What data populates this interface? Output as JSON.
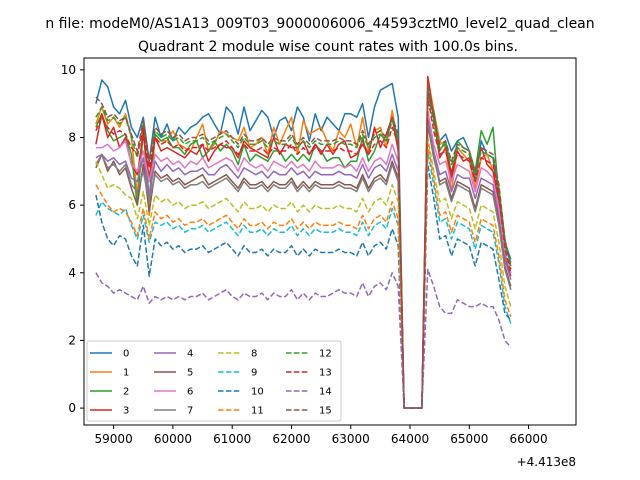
{
  "chart_data": {
    "type": "line",
    "suptitle": "n file: modeM0/AS1A13_009T03_9000006006_44593cztM0_level2_quad_clean",
    "title": "Quadrant 2 module wise count rates with 100.0s bins.",
    "xlabel": "",
    "ylabel": "",
    "x_offset_label": "+4.413e8",
    "xlim": [
      58500,
      66800
    ],
    "ylim": [
      -0.5,
      10.35
    ],
    "x_ticks": [
      59000,
      60000,
      61000,
      62000,
      63000,
      64000,
      65000,
      66000
    ],
    "x_tick_labels": [
      "59000",
      "60000",
      "61000",
      "62000",
      "63000",
      "64000",
      "65000",
      "66000"
    ],
    "y_ticks": [
      0,
      2,
      4,
      6,
      8,
      10
    ],
    "y_tick_labels": [
      "0",
      "2",
      "4",
      "6",
      "8",
      "10"
    ],
    "x_start": 58700,
    "x_step": 100,
    "legend_location": "lower left",
    "legend_columns": 4,
    "series": [
      {
        "name": "0",
        "color": "#1f77b4",
        "dash": "solid",
        "values": [
          9.0,
          9.7,
          9.5,
          8.9,
          8.7,
          9.1,
          8.3,
          8.0,
          8.6,
          7.3,
          8.6,
          8.0,
          8.4,
          7.9,
          8.3,
          8.1,
          8.3,
          8.4,
          8.6,
          8.7,
          8.4,
          8.1,
          8.9,
          8.7,
          8.1,
          8.9,
          8.2,
          8.5,
          8.8,
          8.6,
          8.0,
          8.5,
          8.6,
          8.2,
          8.9,
          8.6,
          7.9,
          8.7,
          8.2,
          8.6,
          8.4,
          8.2,
          8.7,
          8.7,
          8.6,
          9.0,
          8.0,
          8.9,
          9.4,
          9.5,
          9.6,
          8.6,
          0.0,
          0.0,
          0.0,
          0.0,
          9.4,
          8.6,
          7.9,
          8.1,
          7.6,
          7.9,
          8.0,
          7.6,
          6.7,
          7.9,
          7.5,
          7.4,
          6.1,
          4.9,
          4.4
        ]
      },
      {
        "name": "1",
        "color": "#ff7f0e",
        "dash": "solid",
        "values": [
          8.4,
          8.9,
          8.4,
          8.6,
          8.3,
          8.7,
          8.0,
          6.3,
          8.5,
          5.7,
          8.1,
          7.9,
          7.9,
          8.2,
          7.8,
          7.7,
          7.6,
          8.0,
          8.4,
          7.6,
          7.8,
          8.2,
          8.1,
          8.0,
          7.9,
          8.3,
          7.7,
          7.8,
          8.0,
          7.5,
          8.3,
          7.8,
          8.2,
          8.6,
          7.5,
          8.5,
          8.1,
          8.2,
          8.3,
          7.9,
          7.6,
          8.2,
          8.0,
          8.4,
          7.7,
          8.6,
          7.6,
          8.2,
          8.3,
          7.7,
          8.8,
          7.8,
          0.0,
          0.0,
          0.0,
          0.0,
          9.8,
          8.8,
          7.9,
          7.7,
          6.4,
          7.7,
          7.5,
          7.3,
          6.5,
          7.4,
          7.5,
          7.0,
          6.4,
          4.2,
          3.5
        ]
      },
      {
        "name": "2",
        "color": "#2ca02c",
        "dash": "solid",
        "values": [
          8.3,
          8.7,
          8.2,
          7.9,
          8.0,
          8.1,
          7.5,
          6.0,
          8.2,
          6.2,
          8.1,
          7.9,
          8.0,
          7.7,
          7.7,
          7.5,
          7.8,
          7.9,
          7.4,
          7.6,
          7.9,
          7.6,
          7.8,
          7.6,
          7.2,
          7.8,
          7.3,
          7.5,
          7.4,
          7.3,
          7.6,
          7.6,
          7.3,
          7.5,
          7.3,
          7.5,
          7.3,
          7.8,
          7.6,
          7.3,
          7.4,
          7.4,
          7.1,
          7.3,
          7.3,
          8.0,
          7.3,
          7.6,
          8.1,
          7.9,
          8.6,
          7.9,
          0.0,
          0.0,
          0.0,
          0.0,
          9.0,
          8.8,
          7.6,
          7.9,
          6.9,
          7.9,
          7.7,
          7.6,
          7.0,
          8.2,
          7.8,
          8.3,
          6.2,
          4.8,
          4.3
        ]
      },
      {
        "name": "3",
        "color": "#d62728",
        "dash": "solid",
        "values": [
          7.8,
          8.7,
          8.0,
          8.3,
          7.7,
          8.0,
          7.2,
          6.9,
          8.1,
          6.8,
          8.0,
          7.6,
          7.7,
          7.6,
          7.5,
          7.4,
          7.6,
          7.5,
          7.8,
          7.3,
          7.6,
          7.8,
          7.7,
          7.7,
          7.4,
          7.9,
          7.7,
          7.6,
          7.5,
          7.4,
          8.0,
          7.5,
          7.8,
          7.7,
          7.7,
          7.9,
          7.5,
          7.8,
          7.5,
          7.8,
          7.5,
          7.8,
          7.9,
          7.4,
          7.5,
          7.8,
          7.5,
          8.3,
          7.7,
          8.1,
          8.6,
          7.6,
          0.0,
          0.0,
          0.0,
          0.0,
          9.8,
          8.6,
          7.4,
          7.7,
          6.8,
          7.6,
          7.3,
          7.4,
          6.9,
          7.7,
          7.2,
          7.0,
          6.0,
          4.5,
          3.9
        ]
      },
      {
        "name": "4",
        "color": "#9467bd",
        "dash": "solid",
        "values": [
          7.4,
          7.5,
          7.3,
          7.4,
          7.2,
          7.3,
          6.8,
          6.7,
          7.4,
          6.3,
          7.3,
          7.0,
          7.2,
          7.0,
          7.1,
          6.9,
          7.0,
          7.0,
          7.1,
          6.9,
          6.9,
          7.1,
          7.2,
          7.0,
          6.8,
          7.1,
          7.0,
          6.9,
          7.0,
          6.8,
          7.0,
          6.9,
          6.9,
          7.1,
          6.9,
          7.0,
          6.8,
          7.0,
          6.9,
          6.9,
          6.9,
          7.0,
          6.9,
          6.9,
          6.8,
          7.2,
          6.8,
          7.1,
          7.2,
          7.0,
          7.5,
          7.0,
          0.0,
          0.0,
          0.0,
          0.0,
          8.6,
          7.6,
          6.9,
          7.0,
          6.4,
          6.9,
          6.8,
          6.8,
          6.2,
          6.8,
          6.7,
          6.6,
          5.7,
          4.4,
          3.8
        ]
      },
      {
        "name": "5",
        "color": "#8c564b",
        "dash": "solid",
        "values": [
          7.1,
          7.5,
          7.0,
          7.3,
          6.9,
          7.1,
          6.5,
          6.0,
          7.2,
          5.8,
          7.0,
          6.8,
          6.9,
          6.7,
          6.8,
          6.6,
          6.7,
          6.8,
          6.9,
          6.6,
          6.7,
          6.8,
          6.9,
          6.7,
          6.5,
          6.8,
          6.6,
          6.6,
          6.7,
          6.5,
          6.7,
          6.6,
          6.6,
          6.8,
          6.5,
          6.7,
          6.5,
          6.7,
          6.6,
          6.6,
          6.6,
          6.7,
          6.6,
          6.6,
          6.5,
          6.9,
          6.5,
          6.8,
          6.9,
          6.7,
          7.3,
          6.8,
          0.0,
          0.0,
          0.0,
          0.0,
          8.4,
          7.4,
          6.7,
          6.8,
          6.2,
          6.7,
          6.6,
          6.5,
          5.9,
          6.6,
          6.5,
          6.4,
          5.5,
          4.2,
          3.6
        ]
      },
      {
        "name": "6",
        "color": "#e377c2",
        "dash": "solid",
        "values": [
          7.7,
          7.7,
          7.8,
          7.6,
          7.7,
          7.9,
          7.2,
          7.0,
          7.6,
          6.7,
          7.5,
          7.3,
          7.4,
          7.2,
          7.3,
          7.1,
          7.3,
          7.2,
          7.4,
          7.1,
          7.2,
          7.3,
          7.4,
          7.3,
          7.0,
          7.4,
          7.2,
          7.1,
          7.2,
          7.0,
          7.3,
          7.2,
          7.1,
          7.3,
          7.1,
          7.2,
          7.0,
          7.3,
          7.1,
          7.1,
          7.1,
          7.2,
          7.1,
          7.2,
          7.0,
          7.4,
          7.0,
          7.3,
          7.4,
          7.2,
          7.8,
          7.3,
          0.0,
          0.0,
          0.0,
          0.0,
          8.8,
          7.8,
          7.2,
          7.3,
          6.7,
          7.2,
          7.1,
          7.0,
          6.4,
          7.1,
          7.0,
          6.8,
          5.9,
          4.6,
          4.0
        ]
      },
      {
        "name": "7",
        "color": "#7f7f7f",
        "dash": "solid",
        "values": [
          7.2,
          7.5,
          7.1,
          7.2,
          7.0,
          7.2,
          6.6,
          6.4,
          7.0,
          6.1,
          6.9,
          6.7,
          6.8,
          6.6,
          6.7,
          6.5,
          6.6,
          6.6,
          6.7,
          6.5,
          6.6,
          6.7,
          6.8,
          6.6,
          6.4,
          6.7,
          6.5,
          6.5,
          6.6,
          6.4,
          6.6,
          6.5,
          6.5,
          6.7,
          6.4,
          6.6,
          6.4,
          6.6,
          6.5,
          6.5,
          6.5,
          6.6,
          6.5,
          6.5,
          6.4,
          6.8,
          6.4,
          6.7,
          6.8,
          6.6,
          7.2,
          6.7,
          0.0,
          0.0,
          0.0,
          0.0,
          8.5,
          7.5,
          6.6,
          6.7,
          6.1,
          6.6,
          6.5,
          6.4,
          5.8,
          6.5,
          6.4,
          6.3,
          5.4,
          4.1,
          3.5
        ]
      },
      {
        "name": "8",
        "color": "#bcbd22",
        "dash": "dashed",
        "values": [
          7.3,
          6.9,
          6.5,
          6.6,
          6.5,
          6.3,
          6.2,
          5.6,
          6.4,
          5.4,
          6.3,
          6.1,
          6.2,
          6.0,
          6.1,
          5.9,
          6.0,
          6.0,
          6.1,
          5.9,
          6.0,
          6.1,
          6.2,
          6.0,
          5.8,
          6.1,
          5.9,
          5.9,
          6.0,
          5.8,
          6.0,
          5.9,
          5.9,
          6.1,
          5.8,
          6.0,
          5.8,
          6.0,
          5.9,
          5.9,
          5.9,
          6.0,
          5.9,
          5.9,
          5.8,
          6.2,
          5.8,
          6.1,
          6.2,
          6.0,
          6.6,
          6.1,
          0.0,
          0.0,
          0.0,
          0.0,
          8.0,
          7.0,
          6.1,
          6.2,
          5.6,
          6.1,
          6.0,
          5.9,
          5.3,
          6.0,
          5.9,
          5.8,
          4.9,
          3.6,
          3.0
        ]
      },
      {
        "name": "9",
        "color": "#17becf",
        "dash": "dashed",
        "values": [
          5.7,
          6.1,
          5.9,
          5.8,
          5.7,
          5.9,
          5.4,
          5.0,
          5.7,
          4.9,
          5.5,
          5.4,
          5.5,
          5.3,
          5.4,
          5.2,
          5.3,
          5.3,
          5.4,
          5.2,
          5.3,
          5.4,
          5.5,
          5.3,
          5.1,
          5.4,
          5.2,
          5.2,
          5.3,
          5.1,
          5.3,
          5.2,
          5.2,
          5.4,
          5.1,
          5.3,
          5.1,
          5.3,
          5.2,
          5.2,
          5.2,
          5.3,
          5.2,
          5.2,
          5.1,
          5.5,
          5.1,
          5.4,
          5.5,
          5.3,
          5.9,
          5.4,
          0.0,
          0.0,
          0.0,
          0.0,
          7.6,
          6.6,
          5.5,
          5.6,
          5.0,
          5.5,
          5.4,
          5.3,
          4.7,
          5.4,
          5.3,
          5.2,
          4.3,
          3.0,
          2.5
        ]
      },
      {
        "name": "10",
        "color": "#1f77b4",
        "dash": "dashed",
        "values": [
          6.3,
          5.5,
          5.0,
          4.8,
          5.1,
          5.0,
          4.5,
          4.2,
          5.4,
          3.9,
          5.0,
          4.8,
          4.9,
          4.7,
          4.8,
          4.6,
          4.7,
          4.7,
          4.8,
          4.6,
          4.7,
          4.8,
          4.9,
          4.7,
          4.5,
          4.8,
          4.6,
          4.6,
          4.7,
          4.5,
          4.7,
          4.6,
          4.6,
          4.8,
          4.5,
          4.7,
          4.5,
          4.7,
          4.6,
          4.6,
          4.6,
          4.7,
          4.6,
          4.6,
          4.5,
          4.9,
          4.5,
          4.8,
          4.9,
          4.7,
          5.3,
          4.8,
          0.0,
          0.0,
          0.0,
          0.0,
          7.2,
          6.2,
          5.0,
          5.1,
          4.5,
          5.0,
          4.9,
          4.8,
          4.2,
          4.9,
          4.8,
          4.7,
          3.8,
          2.8,
          2.6
        ]
      },
      {
        "name": "11",
        "color": "#ff7f0e",
        "dash": "dashed",
        "values": [
          6.6,
          6.3,
          6.0,
          5.8,
          5.9,
          5.8,
          5.5,
          5.1,
          5.9,
          5.0,
          5.8,
          5.6,
          5.7,
          5.5,
          5.6,
          5.4,
          5.5,
          5.5,
          5.6,
          5.4,
          5.5,
          5.6,
          5.7,
          5.5,
          5.3,
          5.6,
          5.4,
          5.4,
          5.5,
          5.3,
          5.5,
          5.4,
          5.4,
          5.6,
          5.3,
          5.5,
          5.3,
          5.5,
          5.4,
          5.4,
          5.4,
          5.5,
          5.4,
          5.4,
          5.3,
          5.7,
          5.3,
          5.6,
          5.7,
          5.5,
          6.1,
          5.6,
          0.0,
          0.0,
          0.0,
          0.0,
          7.8,
          6.8,
          5.7,
          5.8,
          5.2,
          5.7,
          5.6,
          5.5,
          4.9,
          5.6,
          5.5,
          5.4,
          4.5,
          3.2,
          2.7
        ]
      },
      {
        "name": "12",
        "color": "#2ca02c",
        "dash": "dashed",
        "values": [
          8.6,
          8.9,
          8.5,
          8.6,
          8.4,
          8.6,
          8.0,
          7.4,
          8.4,
          7.2,
          8.2,
          8.0,
          8.1,
          7.9,
          8.0,
          7.8,
          7.9,
          7.9,
          8.0,
          7.8,
          7.9,
          8.0,
          8.1,
          7.9,
          7.7,
          8.0,
          7.8,
          7.8,
          7.9,
          7.7,
          7.9,
          7.8,
          7.8,
          8.0,
          7.7,
          7.9,
          7.7,
          7.9,
          7.8,
          7.8,
          7.8,
          7.9,
          7.8,
          7.8,
          7.7,
          8.1,
          7.7,
          8.0,
          8.1,
          7.9,
          8.5,
          8.0,
          0.0,
          0.0,
          0.0,
          0.0,
          9.4,
          8.4,
          7.7,
          7.8,
          7.2,
          7.7,
          7.6,
          7.5,
          6.9,
          7.6,
          7.5,
          7.4,
          6.5,
          5.0,
          4.2
        ]
      },
      {
        "name": "13",
        "color": "#d62728",
        "dash": "dashed",
        "values": [
          8.2,
          8.6,
          8.3,
          8.1,
          8.2,
          8.1,
          7.7,
          7.5,
          8.3,
          7.1,
          8.0,
          7.8,
          7.9,
          7.7,
          7.8,
          7.6,
          7.7,
          7.7,
          7.8,
          7.6,
          7.7,
          7.8,
          7.9,
          7.7,
          7.5,
          7.8,
          7.6,
          7.6,
          7.7,
          7.5,
          7.7,
          7.6,
          7.6,
          7.8,
          7.5,
          7.7,
          7.5,
          7.7,
          7.6,
          7.6,
          7.6,
          7.7,
          7.6,
          7.6,
          7.5,
          7.9,
          7.5,
          7.8,
          7.9,
          7.7,
          8.3,
          7.8,
          0.0,
          0.0,
          0.0,
          0.0,
          9.2,
          8.2,
          7.5,
          7.6,
          7.0,
          7.5,
          7.4,
          7.3,
          6.7,
          7.4,
          7.3,
          7.2,
          6.3,
          4.7,
          4.0
        ]
      },
      {
        "name": "14",
        "color": "#9467bd",
        "dash": "dashed",
        "values": [
          4.0,
          3.7,
          3.6,
          3.4,
          3.5,
          3.4,
          3.3,
          3.2,
          3.6,
          3.1,
          3.3,
          3.2,
          3.3,
          3.2,
          3.3,
          3.2,
          3.3,
          3.3,
          3.4,
          3.2,
          3.3,
          3.4,
          3.5,
          3.3,
          3.2,
          3.4,
          3.3,
          3.3,
          3.4,
          3.2,
          3.4,
          3.3,
          3.3,
          3.5,
          3.2,
          3.4,
          3.2,
          3.4,
          3.3,
          3.3,
          3.4,
          3.5,
          3.4,
          3.4,
          3.3,
          3.7,
          3.3,
          3.6,
          3.7,
          3.5,
          4.0,
          3.6,
          0.0,
          0.0,
          0.0,
          0.0,
          4.1,
          3.6,
          3.0,
          2.8,
          2.8,
          3.2,
          3.1,
          3.0,
          3.0,
          3.1,
          3.0,
          3.0,
          2.6,
          2.0,
          1.8
        ]
      },
      {
        "name": "15",
        "color": "#8c564b",
        "dash": "dashed",
        "values": [
          9.2,
          9.0,
          8.6,
          8.7,
          8.5,
          8.6,
          8.1,
          7.6,
          8.5,
          7.3,
          8.3,
          8.1,
          8.2,
          8.0,
          8.1,
          7.9,
          8.0,
          8.0,
          8.1,
          7.9,
          8.0,
          8.1,
          8.2,
          8.0,
          7.8,
          8.1,
          7.9,
          7.9,
          8.0,
          7.8,
          8.0,
          7.9,
          7.9,
          8.1,
          7.8,
          8.0,
          7.8,
          8.0,
          7.9,
          7.9,
          7.9,
          8.0,
          7.9,
          7.9,
          7.8,
          8.2,
          7.8,
          8.1,
          8.2,
          8.0,
          8.6,
          8.1,
          0.0,
          0.0,
          0.0,
          0.0,
          9.6,
          8.6,
          7.8,
          7.9,
          7.3,
          7.8,
          7.7,
          7.6,
          7.0,
          7.7,
          7.6,
          7.5,
          6.6,
          5.0,
          4.1
        ]
      }
    ]
  }
}
